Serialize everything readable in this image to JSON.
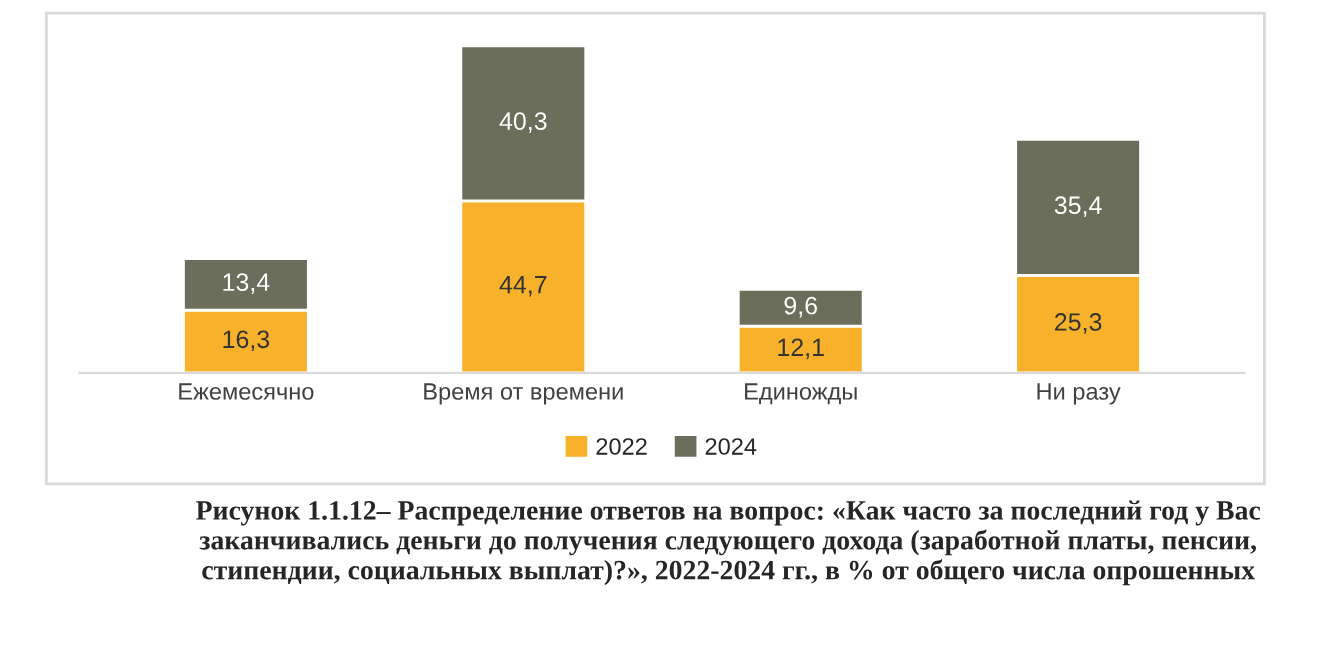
{
  "chart_data": {
    "type": "bar",
    "stacked": true,
    "legend": "bottom",
    "grid": false,
    "categories": [
      "Ежемесячно",
      "Время от времени",
      "Единожды",
      "Ни разу"
    ],
    "series": [
      {
        "name": "2022",
        "color": "#f7b12a",
        "values": [
          16.3,
          44.7,
          12.1,
          25.3
        ],
        "value_labels": [
          "16,3",
          "44,7",
          "12,1",
          "25,3"
        ]
      },
      {
        "name": "2024",
        "color": "#6b6e5b",
        "values": [
          13.4,
          40.3,
          9.6,
          35.4
        ],
        "value_labels": [
          "13,4",
          "40,3",
          "9,6",
          "35,4"
        ]
      }
    ],
    "annotations": [
      "Рисунок 1.1.12– Распределение ответов на вопрос: «Как часто за последний год у Вас заканчивались деньги до получения следующего дохода (заработной платы, пенсии, стипендии, социальных выплат)?», 2022-2024 гг., в % от общего числа опрошенных"
    ]
  }
}
